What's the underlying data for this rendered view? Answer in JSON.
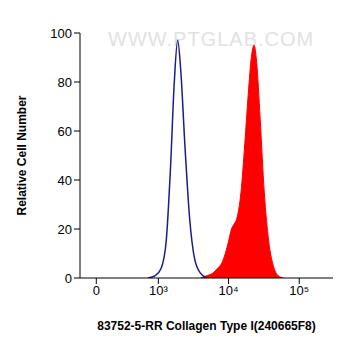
{
  "chart_data": {
    "type": "area",
    "annotation": "WWW.PTGLAB.COM",
    "x_label": "83752-5-RR Collagen Type I(240665F8)",
    "y_label": "Relative Cell Number",
    "xlim": [
      -150,
      300000
    ],
    "xticks": [
      0,
      {
        "value": 1000,
        "label": "10³"
      },
      {
        "value": 10000,
        "label": "10⁴"
      },
      {
        "value": 100000,
        "label": "10⁵"
      }
    ],
    "ylim": [
      0,
      100
    ],
    "yticks": [
      0,
      20,
      40,
      60,
      80,
      100
    ],
    "grid": false,
    "series": [
      {
        "type": "line",
        "color": "#1c1c8c",
        "x": [
          700,
          900,
          1100,
          1300,
          1500,
          1700,
          1900,
          2100,
          2400,
          2800,
          3300,
          4000,
          5000
        ],
        "values": [
          0,
          1,
          4,
          15,
          45,
          80,
          97,
          85,
          55,
          25,
          8,
          2,
          0
        ]
      },
      {
        "type": "area",
        "color": "#ff0000",
        "x": [
          4000,
          5000,
          6000,
          7000,
          8000,
          9000,
          10000,
          11000,
          12000,
          13000,
          15000,
          17000,
          19000,
          21000,
          23000,
          25000,
          28000,
          32000,
          37000,
          43000,
          50000,
          60000
        ],
        "values": [
          0,
          1,
          2,
          4,
          6,
          10,
          15,
          20,
          22,
          24,
          35,
          55,
          75,
          90,
          95,
          88,
          65,
          35,
          15,
          5,
          1,
          0
        ]
      }
    ]
  }
}
